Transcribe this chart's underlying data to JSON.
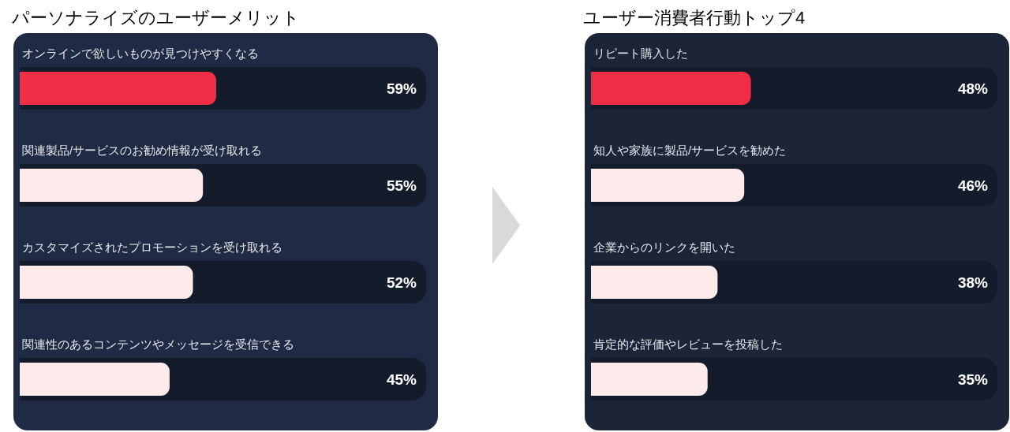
{
  "chart_data": [
    {
      "type": "bar",
      "orientation": "horizontal",
      "title": "パーソナライズのユーザーメリット",
      "categories": [
        "オンラインで欲しいものが見つけやすくなる",
        "関連製品/サービスのお勧め情報が受け取れる",
        "カスタマイズされたプロモーションを受け取れる",
        "関連性のあるコンテンツやメッセージを受信できる"
      ],
      "values": [
        59,
        55,
        52,
        45
      ],
      "colors": [
        "#f22e46",
        "#fdeaea",
        "#fdeaea",
        "#fdeaea"
      ],
      "value_labels": [
        "59%",
        "55%",
        "52%",
        "45%"
      ],
      "xlim": [
        0,
        122
      ],
      "bands": [
        {
          "axis": "y",
          "from": "オンラインで欲しいものが見つけやすくなる",
          "to": "オンラインで欲しいものが見つけやすくなる",
          "color": "#141b2b"
        },
        {
          "axis": "y",
          "from": "関連製品/サービスのお勧め情報が受け取れる",
          "to": "関連製品/サービスのお勧め情報が受け取れる",
          "color": "#141b2b"
        },
        {
          "axis": "y",
          "from": "カスタマイズされたプロモーションを受け取れる",
          "to": "カスタマイズされたプロモーションを受け取れる",
          "color": "#141b2b"
        },
        {
          "axis": "y",
          "from": "関連性のあるコンテンツやメッセージを受信できる",
          "to": "関連性のあるコンテンツやメッセージを受信できる",
          "color": "#141b2b"
        }
      ]
    },
    {
      "type": "bar",
      "orientation": "horizontal",
      "title": "ユーザー消費者行動トップ4",
      "categories": [
        "リピート購入した",
        "知人や家族に製品/サービスを勧めた",
        "企業からのリンクを開いた",
        "肯定的な評価やレビューを投稿した"
      ],
      "values": [
        48,
        46,
        38,
        35
      ],
      "colors": [
        "#f22e46",
        "#fdeaea",
        "#fdeaea",
        "#fdeaea"
      ],
      "value_labels": [
        "48%",
        "46%",
        "38%",
        "35%"
      ],
      "xlim": [
        0,
        122
      ],
      "bands": [
        {
          "axis": "y",
          "from": "リピート購入した",
          "to": "リピート購入した",
          "color": "#141b2b"
        },
        {
          "axis": "y",
          "from": "知人や家族に製品/サービスを勧めた",
          "to": "知人や家族に製品/サービスを勧めた",
          "color": "#141b2b"
        },
        {
          "axis": "y",
          "from": "企業からのリンクを開いた",
          "to": "企業からのリンクを開いた",
          "color": "#141b2b"
        },
        {
          "axis": "y",
          "from": "肯定的な評価やレビューを投稿した",
          "to": "肯定的な評価やレビューを投稿した",
          "color": "#141b2b"
        }
      ]
    }
  ]
}
